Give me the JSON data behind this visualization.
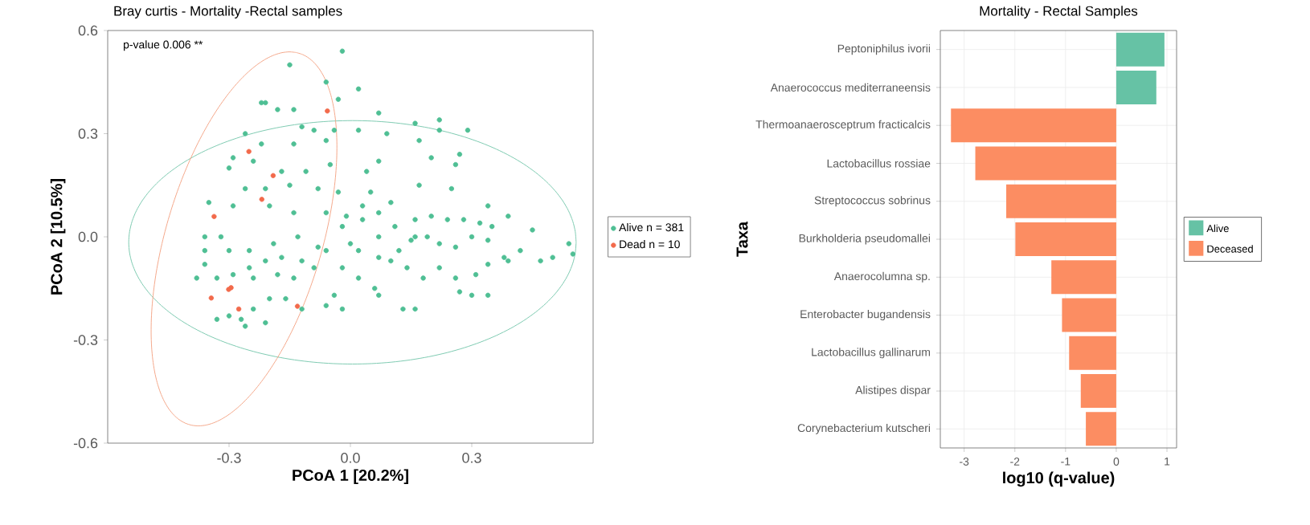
{
  "chart_data": [
    {
      "type": "scatter",
      "title": "Bray curtis - Mortality -Rectal samples",
      "xlabel": "PCoA 1 [20.2%]",
      "ylabel": "PCoA 2 [10.5%]",
      "annotations": [
        "p-value 0.006 **"
      ],
      "xlim": [
        -0.6,
        0.6
      ],
      "ylim": [
        -0.6,
        0.6
      ],
      "xticks": [
        -0.3,
        {
          "value": 0,
          "label": "0.0"
        },
        0.3
      ],
      "yticks": [
        -0.6,
        -0.3,
        {
          "value": 0,
          "label": "0.0"
        },
        0.3,
        0.6
      ],
      "legend": "right",
      "series": [
        {
          "name": "Alive n = 381",
          "color": "#4fbf94",
          "x": [
            -0.02,
            -0.15,
            -0.06,
            -0.03,
            -0.14,
            0.02,
            -0.22,
            -0.21,
            -0.18,
            0.07,
            0.16,
            0.22,
            0.29,
            0.22,
            0.09,
            0.02,
            -0.04,
            -0.09,
            -0.12,
            -0.26,
            -0.22,
            -0.14,
            -0.06,
            0.17,
            0.27,
            0.26,
            0.2,
            0.07,
            0.04,
            -0.05,
            -0.11,
            -0.17,
            -0.24,
            -0.3,
            -0.29,
            -0.26,
            -0.21,
            -0.15,
            -0.08,
            -0.03,
            0.05,
            0.17,
            0.25,
            0.34,
            0.1,
            0.03,
            -0.01,
            -0.06,
            -0.14,
            -0.2,
            -0.29,
            -0.35,
            -0.36,
            -0.32,
            -0.25,
            -0.19,
            -0.13,
            -0.08,
            -0.02,
            0.03,
            0.07,
            0.11,
            0.16,
            0.2,
            0.24,
            0.28,
            0.32,
            0.35,
            0.39,
            0.45,
            0.54,
            0.55,
            0.5,
            0.47,
            0.42,
            0.38,
            0.34,
            0.3,
            0.26,
            0.22,
            0.19,
            0.15,
            0.12,
            0.07,
            0.02,
            -0.02,
            -0.06,
            -0.12,
            -0.17,
            -0.21,
            -0.25,
            -0.3,
            -0.36,
            -0.33,
            -0.29,
            -0.24,
            -0.18,
            -0.14,
            -0.09,
            -0.04,
            0.02,
            0.06,
            0.1,
            0.14,
            0.18,
            0.22,
            0.26,
            0.31,
            0.3,
            0.34,
            0.27,
            0.16,
            0.13,
            0.07,
            -0.02,
            -0.06,
            -0.12,
            -0.16,
            -0.2,
            -0.24,
            -0.27,
            -0.3,
            -0.33,
            -0.26,
            -0.21,
            -0.38,
            -0.36,
            0.07,
            0.0,
            0.34,
            0.39,
            0.16
          ],
          "values": [
            0.54,
            0.5,
            0.45,
            0.4,
            0.37,
            0.43,
            0.39,
            0.39,
            0.37,
            0.36,
            0.33,
            0.34,
            0.31,
            0.31,
            0.3,
            0.31,
            0.31,
            0.31,
            0.32,
            0.3,
            0.27,
            0.27,
            0.28,
            0.28,
            0.24,
            0.21,
            0.23,
            0.22,
            0.19,
            0.21,
            0.19,
            0.19,
            0.22,
            0.2,
            0.23,
            0.14,
            0.14,
            0.15,
            0.14,
            0.13,
            0.13,
            0.15,
            0.14,
            0.09,
            0.1,
            0.09,
            0.06,
            0.07,
            0.07,
            0.09,
            0.09,
            0.1,
            0.0,
            0.0,
            -0.04,
            -0.02,
            0.0,
            -0.03,
            0.03,
            0.05,
            0.07,
            0.03,
            0.05,
            0.06,
            0.05,
            0.05,
            0.04,
            0.03,
            0.06,
            0.02,
            -0.02,
            -0.05,
            -0.06,
            -0.07,
            -0.04,
            -0.06,
            -0.01,
            0.0,
            -0.03,
            -0.02,
            0.0,
            -0.01,
            -0.04,
            -0.06,
            -0.04,
            -0.09,
            -0.04,
            -0.07,
            -0.06,
            -0.07,
            -0.09,
            -0.04,
            -0.04,
            -0.12,
            -0.11,
            -0.12,
            -0.11,
            -0.12,
            -0.09,
            -0.17,
            -0.12,
            -0.15,
            -0.07,
            -0.09,
            -0.12,
            -0.09,
            -0.12,
            -0.11,
            -0.17,
            -0.17,
            -0.16,
            -0.21,
            -0.21,
            -0.17,
            -0.21,
            -0.2,
            -0.21,
            -0.18,
            -0.18,
            -0.21,
            -0.24,
            -0.23,
            -0.24,
            -0.26,
            -0.25,
            -0.12,
            -0.08,
            0.0,
            -0.02,
            -0.08,
            -0.07,
            0.0
          ]
        },
        {
          "name": "Dead n = 10",
          "color": "#f26a4b",
          "x": [
            -0.057,
            -0.251,
            -0.191,
            -0.219,
            -0.337,
            -0.295,
            -0.301,
            -0.344,
            -0.276,
            -0.131
          ],
          "values": [
            0.366,
            0.248,
            0.178,
            0.109,
            0.059,
            -0.148,
            -0.153,
            -0.178,
            -0.21,
            -0.202
          ]
        }
      ]
    },
    {
      "type": "bar",
      "orientation": "horizontal",
      "title": "Mortality - Rectal Samples",
      "xlabel": "log10 (q-value)",
      "ylabel": "Taxa",
      "categories": [
        "Peptoniphilus ivorii",
        "Anaerococcus mediterraneensis",
        "Thermoanaerosceptrum fracticalcis",
        "Lactobacillus rossiae",
        "Streptococcus sobrinus",
        "Burkholderia pseudomallei",
        "Anaerocolumna sp.",
        "Enterobacter bugandensis",
        "Lactobacillus gallinarum",
        "Alistipes dispar",
        "Corynebacterium kutscheri"
      ],
      "xlim": [
        -3.47,
        1.19
      ],
      "xticks": [
        -3,
        -2,
        -1,
        0,
        1
      ],
      "grid": true,
      "legend": "right",
      "series": [
        {
          "name": "Alive",
          "color": "#66c2a5",
          "values": [
            0.95,
            0.79,
            null,
            null,
            null,
            null,
            null,
            null,
            null,
            null,
            null
          ]
        },
        {
          "name": "Deceased",
          "color": "#fc8d62",
          "values": [
            null,
            null,
            -3.26,
            -2.78,
            -2.17,
            -1.99,
            -1.28,
            -1.07,
            -0.93,
            -0.7,
            -0.6
          ]
        }
      ]
    }
  ]
}
